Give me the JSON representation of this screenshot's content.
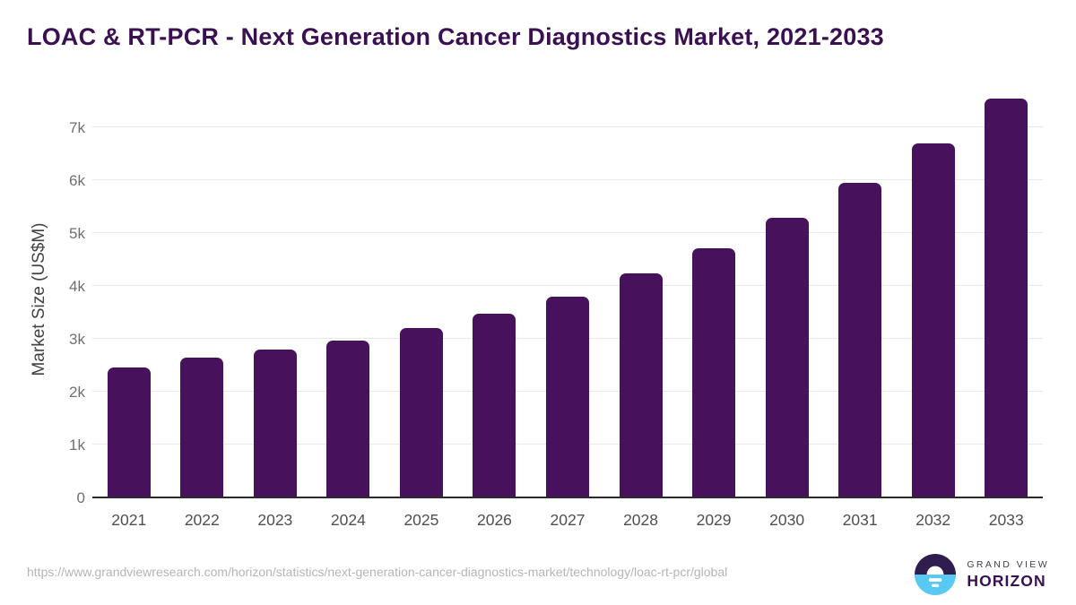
{
  "title": "LOAC & RT-PCR - Next Generation Cancer Diagnostics Market, 2021-2033",
  "chart_data": {
    "type": "bar",
    "title": "LOAC & RT-PCR - Next Generation Cancer Diagnostics Market, 2021-2033",
    "categories": [
      "2021",
      "2022",
      "2023",
      "2024",
      "2025",
      "2026",
      "2027",
      "2028",
      "2029",
      "2030",
      "2031",
      "2032",
      "2033"
    ],
    "values": [
      2450,
      2630,
      2780,
      2950,
      3190,
      3460,
      3780,
      4220,
      4700,
      5270,
      5930,
      6680,
      7530
    ],
    "xlabel": "",
    "ylabel": "Market Size (US$M)",
    "ylim": [
      0,
      7800
    ],
    "yticks": [
      {
        "value": 0,
        "label": "0"
      },
      {
        "value": 1000,
        "label": "1k"
      },
      {
        "value": 2000,
        "label": "2k"
      },
      {
        "value": 3000,
        "label": "3k"
      },
      {
        "value": 4000,
        "label": "4k"
      },
      {
        "value": 5000,
        "label": "5k"
      },
      {
        "value": 6000,
        "label": "6k"
      },
      {
        "value": 7000,
        "label": "7k"
      }
    ],
    "grid": true,
    "legend": false,
    "bar_color": "#48115C"
  },
  "colors": {
    "title": "#3B1053",
    "bar": "#48115C",
    "gridline": "#e9e9e9",
    "axis_line": "#2b2b2b",
    "y_tick_text": "#6f6f6f",
    "x_tick_text": "#4f4f4f",
    "url_text": "#b5b5b5",
    "logo_purple": "#2E1D4E",
    "logo_blue": "#57C9F3"
  },
  "footer": {
    "source_url": "https://www.grandviewresearch.com/horizon/statistics/next-generation-cancer-diagnostics-market/technology/loac-rt-pcr/global",
    "logo": {
      "line1": "GRAND VIEW",
      "line2": "HORIZON"
    }
  }
}
